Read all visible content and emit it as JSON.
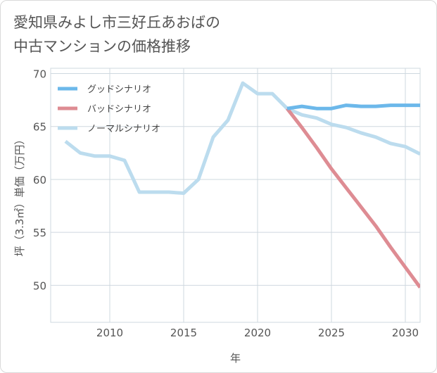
{
  "title": {
    "line1": "愛知県みよし市三好丘あおばの",
    "line2": "中古マンションの価格推移"
  },
  "chart_data": {
    "type": "line",
    "xlabel": "年",
    "ylabel": "坪（3.3㎡）単価（万円）",
    "xlim": [
      2006,
      2031
    ],
    "ylim": [
      46.5,
      70.5
    ],
    "xticks": [
      2010,
      2015,
      2020,
      2025,
      2030
    ],
    "yticks": [
      50,
      55,
      60,
      65,
      70
    ],
    "grid": true,
    "legend_position": "top-left",
    "series": [
      {
        "name": "グッドシナリオ",
        "color": "#6cb8ea",
        "x": [
          2022,
          2023,
          2024,
          2025,
          2026,
          2027,
          2028,
          2029,
          2030,
          2031
        ],
        "y": [
          66.7,
          66.9,
          66.7,
          66.7,
          67.0,
          66.9,
          66.9,
          67.0,
          67.0,
          67.0
        ]
      },
      {
        "name": "バッドシナリオ",
        "color": "#de8c93",
        "x": [
          2022,
          2023,
          2024,
          2025,
          2026,
          2027,
          2028,
          2029,
          2030,
          2031
        ],
        "y": [
          66.7,
          64.9,
          63.0,
          61.0,
          59.2,
          57.4,
          55.6,
          53.6,
          51.7,
          49.8
        ]
      },
      {
        "name": "ノーマルシナリオ",
        "color": "#bcdcee",
        "x": [
          2007,
          2008,
          2009,
          2010,
          2011,
          2012,
          2013,
          2014,
          2015,
          2016,
          2017,
          2018,
          2019,
          2020,
          2021,
          2022,
          2023,
          2024,
          2025,
          2026,
          2027,
          2028,
          2029,
          2030,
          2031
        ],
        "y": [
          63.6,
          62.5,
          62.2,
          62.2,
          61.8,
          58.8,
          58.8,
          58.8,
          58.7,
          60.0,
          64.0,
          65.6,
          69.1,
          68.1,
          68.1,
          66.7,
          66.1,
          65.8,
          65.2,
          64.9,
          64.4,
          64.0,
          63.4,
          63.1,
          62.4
        ]
      }
    ]
  }
}
